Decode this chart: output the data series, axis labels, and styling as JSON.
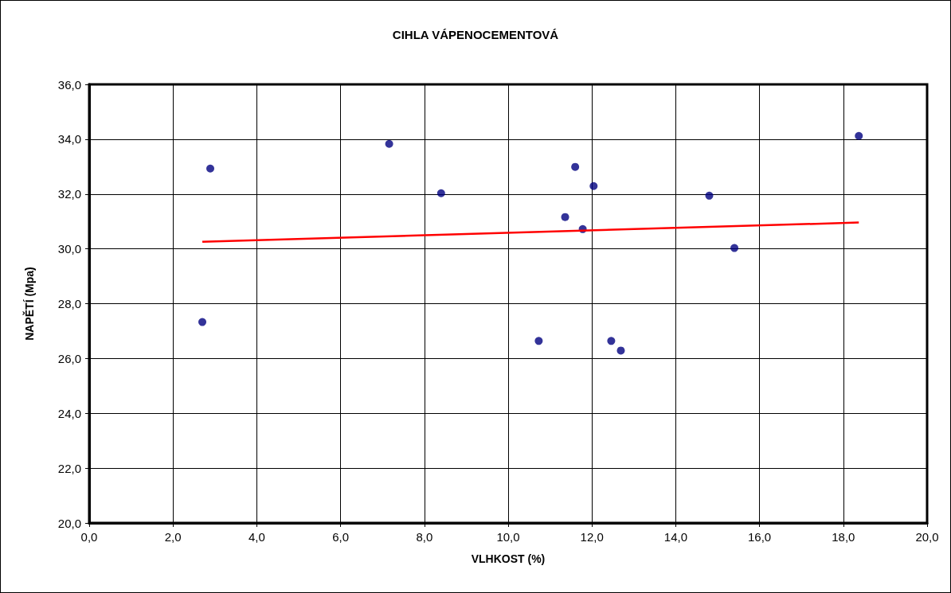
{
  "chart_data": {
    "type": "scatter",
    "title": "CIHLA VÁPENOCEMENTOVÁ",
    "xlabel": "VLHKOST (%)",
    "ylabel": "NAPĚTÍ (Mpa)",
    "series": [
      {
        "color": "#000080",
        "marker": "circle",
        "x": [
          2.7,
          2.89,
          7.16,
          8.4,
          10.73,
          11.36,
          11.6,
          11.78,
          12.04,
          12.46,
          12.69,
          14.8,
          15.4,
          18.37
        ],
        "values": [
          27.33,
          32.93,
          33.83,
          32.03,
          26.64,
          31.16,
          32.99,
          30.72,
          32.29,
          26.64,
          26.29,
          31.94,
          30.03,
          34.12
        ]
      },
      {
        "type": "line",
        "color": "#ff0000",
        "marker": "none",
        "line_style": "solid",
        "x": [
          2.7,
          18.37
        ],
        "values": [
          30.26,
          30.96
        ]
      }
    ],
    "xlim": [
      0,
      20
    ],
    "ylim": [
      20,
      36
    ],
    "xticks": [
      {
        "value": 0,
        "label": "0,0"
      },
      {
        "value": 2,
        "label": "2,0"
      },
      {
        "value": 4,
        "label": "4,0"
      },
      {
        "value": 6,
        "label": "6,0"
      },
      {
        "value": 8,
        "label": "8,0"
      },
      {
        "value": 10,
        "label": "10,0"
      },
      {
        "value": 12,
        "label": "12,0"
      },
      {
        "value": 14,
        "label": "14,0"
      },
      {
        "value": 16,
        "label": "16,0"
      },
      {
        "value": 18,
        "label": "18,0"
      },
      {
        "value": 20,
        "label": "20,0"
      }
    ],
    "yticks": [
      {
        "value": 20,
        "label": "20,0"
      },
      {
        "value": 22,
        "label": "22,0"
      },
      {
        "value": 24,
        "label": "24,0"
      },
      {
        "value": 26,
        "label": "26,0"
      },
      {
        "value": 28,
        "label": "28,0"
      },
      {
        "value": 30,
        "label": "30,0"
      },
      {
        "value": 32,
        "label": "32,0"
      },
      {
        "value": 34,
        "label": "34,0"
      },
      {
        "value": 36,
        "label": "36,0"
      }
    ],
    "grid": true
  }
}
